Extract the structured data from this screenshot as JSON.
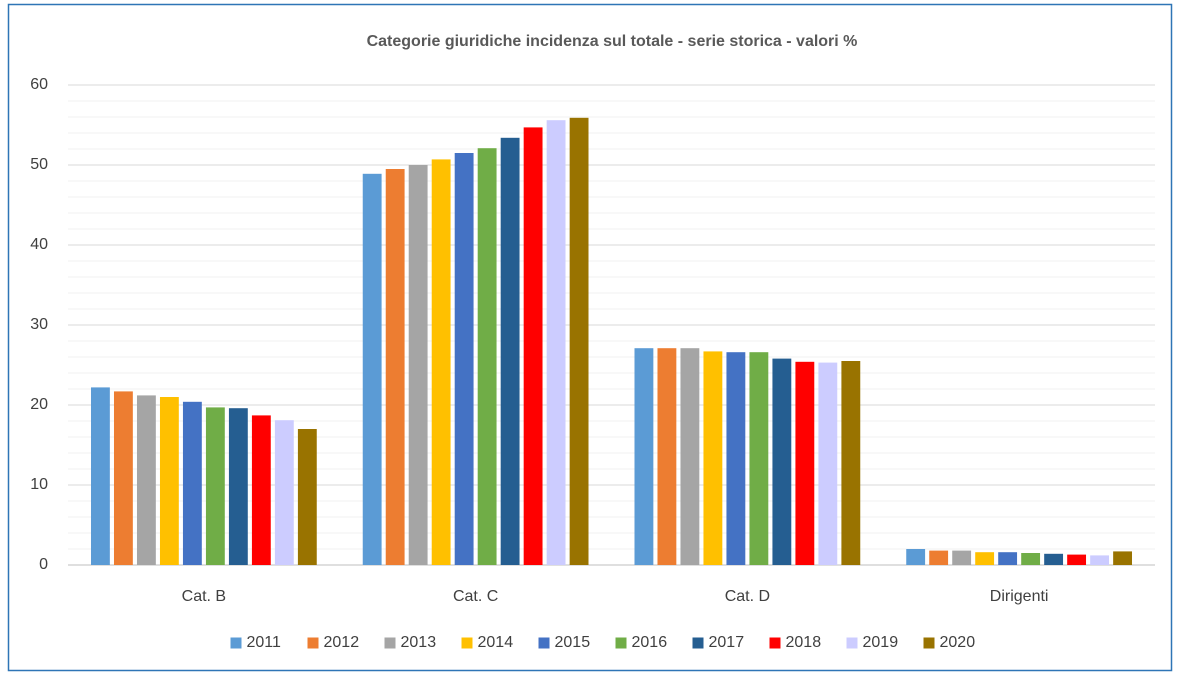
{
  "chart_data": {
    "type": "bar",
    "title": "Categorie giuridiche incidenza sul totale - serie storica - valori %",
    "categories": [
      "Cat. B",
      "Cat. C",
      "Cat. D",
      "Dirigenti"
    ],
    "series": [
      {
        "name": "2011",
        "color": "#5b9bd5",
        "values": [
          22.2,
          48.9,
          27.1,
          2.0
        ]
      },
      {
        "name": "2012",
        "color": "#ed7d31",
        "values": [
          21.7,
          49.5,
          27.1,
          1.8
        ]
      },
      {
        "name": "2013",
        "color": "#a5a5a5",
        "values": [
          21.2,
          50.0,
          27.1,
          1.8
        ]
      },
      {
        "name": "2014",
        "color": "#ffc000",
        "values": [
          21.0,
          50.7,
          26.7,
          1.6
        ]
      },
      {
        "name": "2015",
        "color": "#4472c4",
        "values": [
          20.4,
          51.5,
          26.6,
          1.6
        ]
      },
      {
        "name": "2016",
        "color": "#70ad47",
        "values": [
          19.7,
          52.1,
          26.6,
          1.5
        ]
      },
      {
        "name": "2017",
        "color": "#255e91",
        "values": [
          19.6,
          53.4,
          25.8,
          1.4
        ]
      },
      {
        "name": "2018",
        "color": "#ff0000",
        "values": [
          18.7,
          54.7,
          25.4,
          1.3
        ]
      },
      {
        "name": "2019",
        "color": "#ccccff",
        "values": [
          18.1,
          55.6,
          25.3,
          1.2
        ]
      },
      {
        "name": "2020",
        "color": "#997300",
        "values": [
          17.0,
          55.9,
          25.5,
          1.7
        ]
      }
    ],
    "ylim": [
      0,
      60
    ],
    "yticks": [
      0,
      10,
      20,
      30,
      40,
      50,
      60
    ],
    "grid": true,
    "minor_grid_step": 2,
    "legend": "bottom"
  }
}
